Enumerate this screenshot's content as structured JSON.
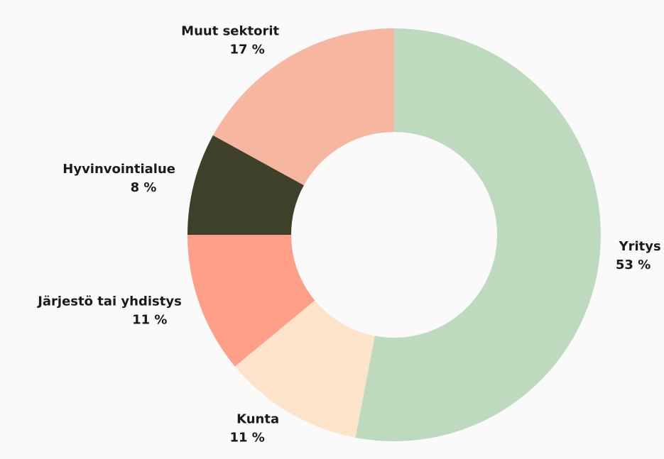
{
  "chart_data": {
    "type": "donut",
    "categories": [
      "Yritys",
      "Kunta",
      "Järjestö tai yhdistys",
      "Hyvinvointialue",
      "Muut sektorit"
    ],
    "values": [
      53,
      11,
      11,
      8,
      17
    ],
    "value_labels": [
      "53 %",
      "11 %",
      "11 %",
      "8 %",
      "17 %"
    ],
    "colors": [
      "#bdd9be",
      "#fde3c9",
      "#ff9f87",
      "#3d4129",
      "#f6b6a0"
    ]
  }
}
